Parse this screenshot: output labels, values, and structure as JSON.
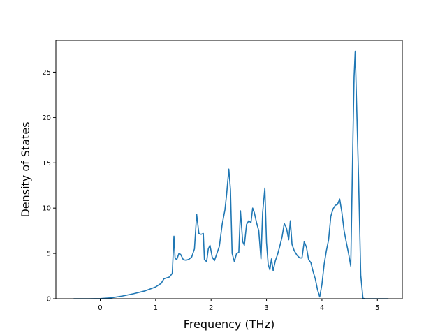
{
  "chart_data": {
    "type": "line",
    "title": "",
    "xlabel": "Frequency (THz)",
    "ylabel": "Density of States",
    "xlim": [
      -0.8,
      5.45
    ],
    "ylim": [
      0,
      28.5
    ],
    "xticks": [
      0,
      1,
      2,
      3,
      4,
      5
    ],
    "yticks": [
      0,
      5,
      10,
      15,
      20,
      25
    ],
    "grid": false,
    "legend": "none",
    "series": [
      {
        "color": "#1f77b4",
        "x": [
          -0.48,
          -0.2,
          0.0,
          0.2,
          0.4,
          0.6,
          0.8,
          1.0,
          1.1,
          1.15,
          1.2,
          1.25,
          1.3,
          1.33,
          1.35,
          1.38,
          1.42,
          1.45,
          1.5,
          1.55,
          1.6,
          1.65,
          1.7,
          1.74,
          1.78,
          1.82,
          1.86,
          1.88,
          1.92,
          1.95,
          1.98,
          2.02,
          2.06,
          2.1,
          2.15,
          2.2,
          2.25,
          2.28,
          2.32,
          2.35,
          2.38,
          2.42,
          2.46,
          2.5,
          2.53,
          2.57,
          2.6,
          2.64,
          2.68,
          2.72,
          2.75,
          2.78,
          2.82,
          2.86,
          2.9,
          2.93,
          2.97,
          3.0,
          3.03,
          3.06,
          3.09,
          3.12,
          3.16,
          3.2,
          3.24,
          3.28,
          3.32,
          3.36,
          3.4,
          3.43,
          3.46,
          3.5,
          3.55,
          3.6,
          3.64,
          3.68,
          3.72,
          3.76,
          3.8,
          3.84,
          3.88,
          3.92,
          3.96,
          4.0,
          4.04,
          4.08,
          4.12,
          4.16,
          4.2,
          4.24,
          4.28,
          4.32,
          4.36,
          4.4,
          4.44,
          4.48,
          4.52,
          4.56,
          4.58,
          4.6,
          4.63,
          4.66,
          4.7,
          4.74,
          4.78,
          4.85,
          5.0,
          5.2
        ],
        "y": [
          0,
          0,
          0.02,
          0.1,
          0.3,
          0.55,
          0.85,
          1.3,
          1.7,
          2.2,
          2.3,
          2.4,
          2.8,
          6.9,
          4.5,
          4.3,
          5.0,
          4.9,
          4.3,
          4.25,
          4.35,
          4.6,
          5.5,
          9.3,
          7.2,
          7.1,
          7.2,
          4.3,
          4.1,
          5.5,
          5.9,
          4.6,
          4.2,
          4.9,
          5.8,
          8.2,
          9.8,
          11.5,
          14.3,
          12.0,
          5.0,
          4.1,
          5.0,
          5.1,
          9.7,
          6.3,
          5.9,
          8.2,
          8.6,
          8.4,
          10.0,
          9.5,
          8.4,
          7.5,
          4.4,
          9.5,
          12.2,
          6.2,
          3.8,
          3.2,
          4.4,
          3.1,
          4.2,
          4.9,
          5.8,
          6.8,
          8.3,
          7.8,
          6.5,
          8.6,
          6.0,
          5.3,
          4.8,
          4.5,
          4.5,
          6.3,
          5.7,
          4.3,
          4.0,
          3.0,
          2.2,
          1.0,
          0.2,
          1.6,
          3.8,
          5.3,
          6.5,
          9.1,
          9.9,
          10.3,
          10.4,
          11.0,
          9.5,
          7.5,
          6.2,
          5.0,
          3.6,
          18.0,
          24.5,
          27.3,
          20.5,
          13.5,
          2.6,
          0.05,
          0,
          0,
          0,
          0
        ]
      }
    ]
  }
}
